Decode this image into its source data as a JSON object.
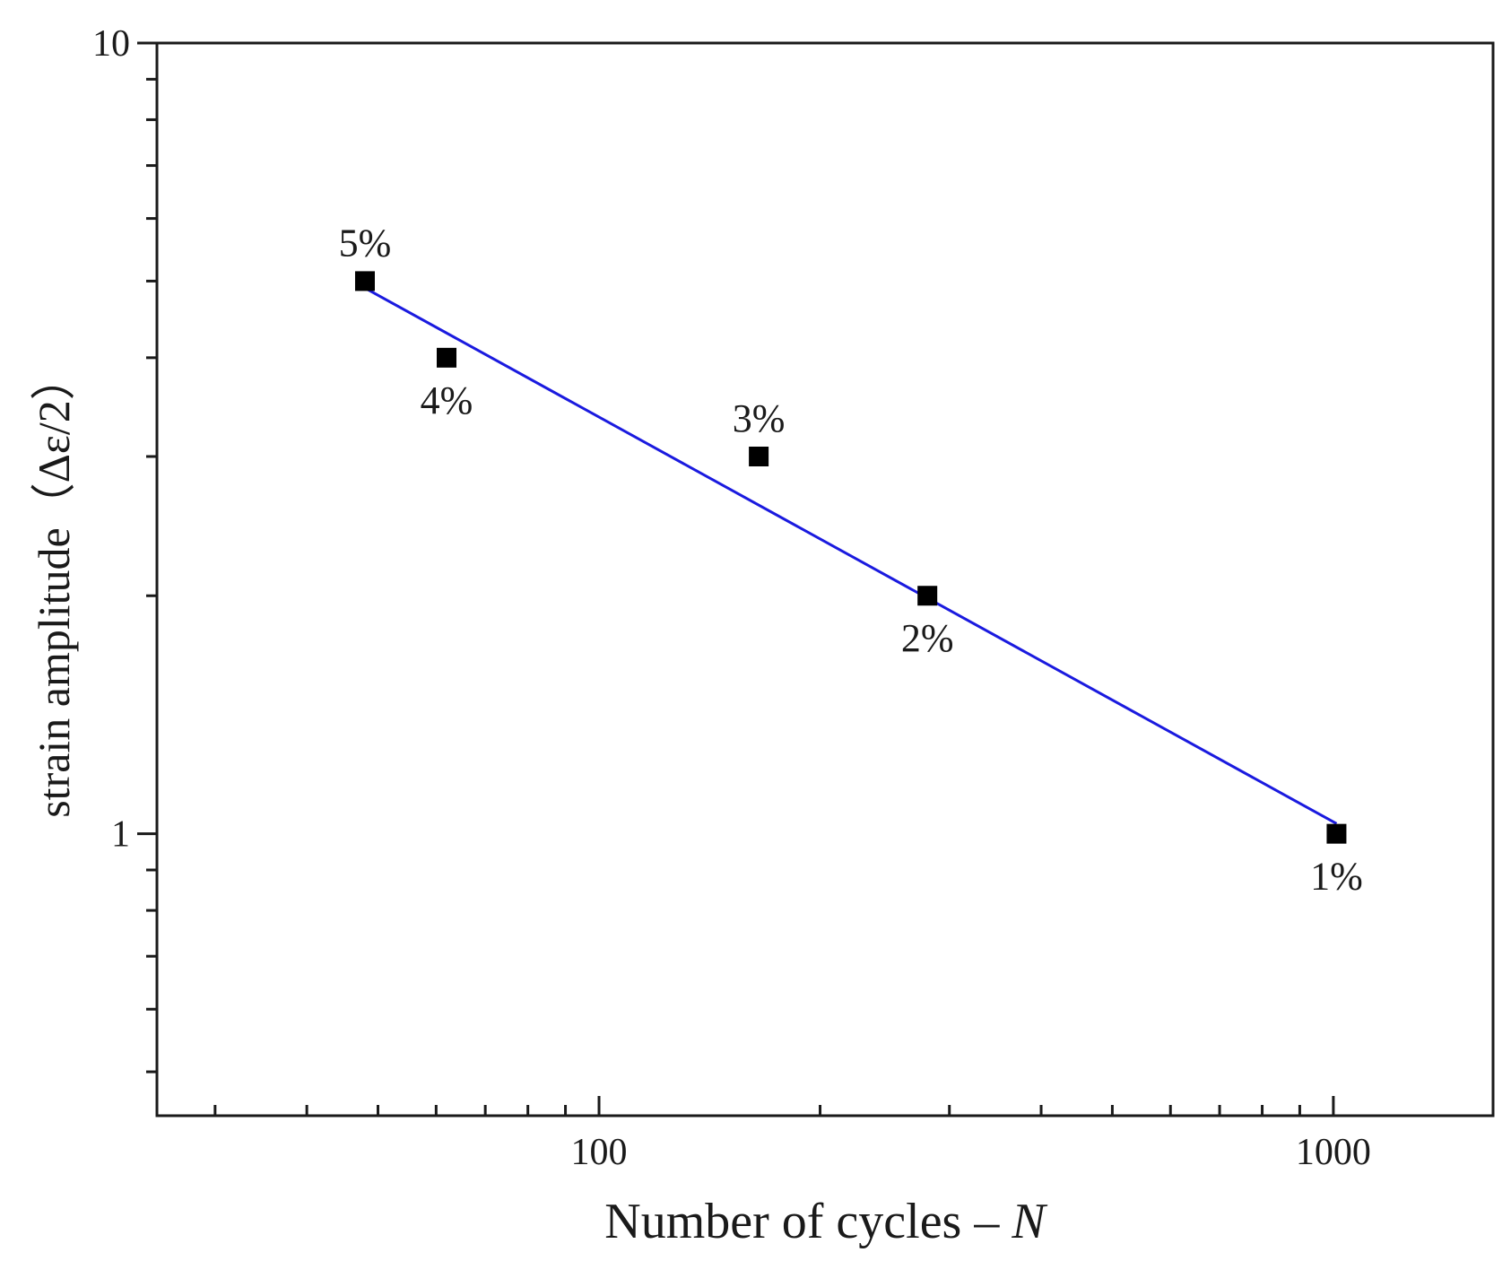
{
  "chart_data": {
    "type": "scatter",
    "title": "",
    "xlabel_main": "Number of cycles – ",
    "xlabel_italic": "N",
    "ylabel": "strain amplitude（Δε/2）",
    "xscale": "log",
    "yscale": "log",
    "xlim": [
      25,
      1650
    ],
    "ylim": [
      0.44,
      10
    ],
    "x_ticks": [
      {
        "value": 100,
        "label": "100"
      },
      {
        "value": 1000,
        "label": "1000"
      }
    ],
    "y_ticks": [
      {
        "value": 1,
        "label": "1"
      },
      {
        "value": 10,
        "label": "10"
      }
    ],
    "series": [
      {
        "name": "data",
        "marker": "square",
        "color": "#000000",
        "points": [
          {
            "x": 48,
            "y": 5.0,
            "label": "5%",
            "label_pos": "above"
          },
          {
            "x": 62,
            "y": 4.0,
            "label": "4%",
            "label_pos": "below"
          },
          {
            "x": 165,
            "y": 3.0,
            "label": "3%",
            "label_pos": "above"
          },
          {
            "x": 280,
            "y": 2.0,
            "label": "2%",
            "label_pos": "below"
          },
          {
            "x": 1010,
            "y": 1.0,
            "label": "1%",
            "label_pos": "below"
          }
        ]
      }
    ],
    "fit_line": {
      "color": "#1a1adf",
      "x": [
        48,
        1010
      ],
      "y": [
        4.9,
        1.03
      ]
    }
  }
}
